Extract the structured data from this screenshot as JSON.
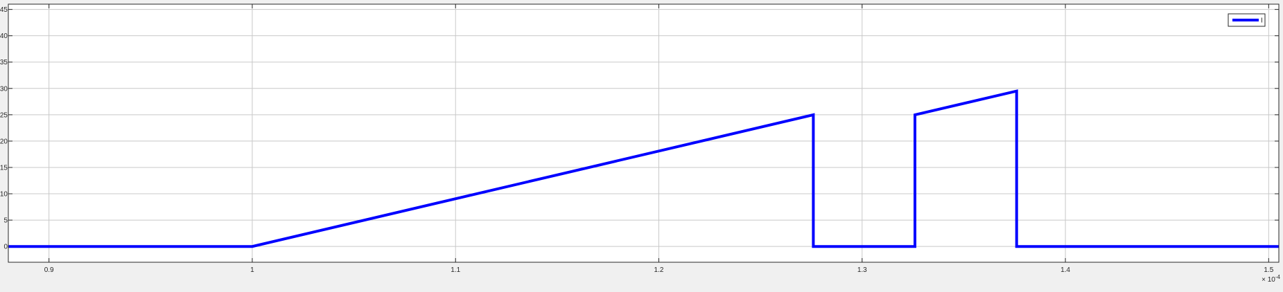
{
  "chart_data": {
    "type": "line",
    "title": "",
    "xlabel": "",
    "ylabel": "",
    "x_exponent_label": "× 10",
    "x_exponent_power": "-4",
    "xlim": [
      0.88,
      1.505
    ],
    "ylim": [
      -3,
      46
    ],
    "x_ticks": [
      0.9,
      1,
      1.1,
      1.2,
      1.3,
      1.4,
      1.5
    ],
    "x_tick_labels": [
      "0.9",
      "1",
      "1.1",
      "1.2",
      "1.3",
      "1.4",
      "1.5"
    ],
    "y_ticks": [
      0,
      5,
      10,
      15,
      20,
      25,
      30,
      35,
      40,
      45
    ],
    "y_tick_labels": [
      "0",
      "5",
      "10",
      "15",
      "20",
      "25",
      "30",
      "35",
      "40",
      "45"
    ],
    "grid": true,
    "legend_position": "top-right",
    "series": [
      {
        "name": "I",
        "color": "#0000ff",
        "x": [
          0.88,
          1.0,
          1.276,
          1.276,
          1.326,
          1.326,
          1.376,
          1.376,
          1.505
        ],
        "y": [
          0,
          0,
          25,
          0,
          0,
          25,
          29.5,
          0,
          0
        ]
      }
    ]
  }
}
